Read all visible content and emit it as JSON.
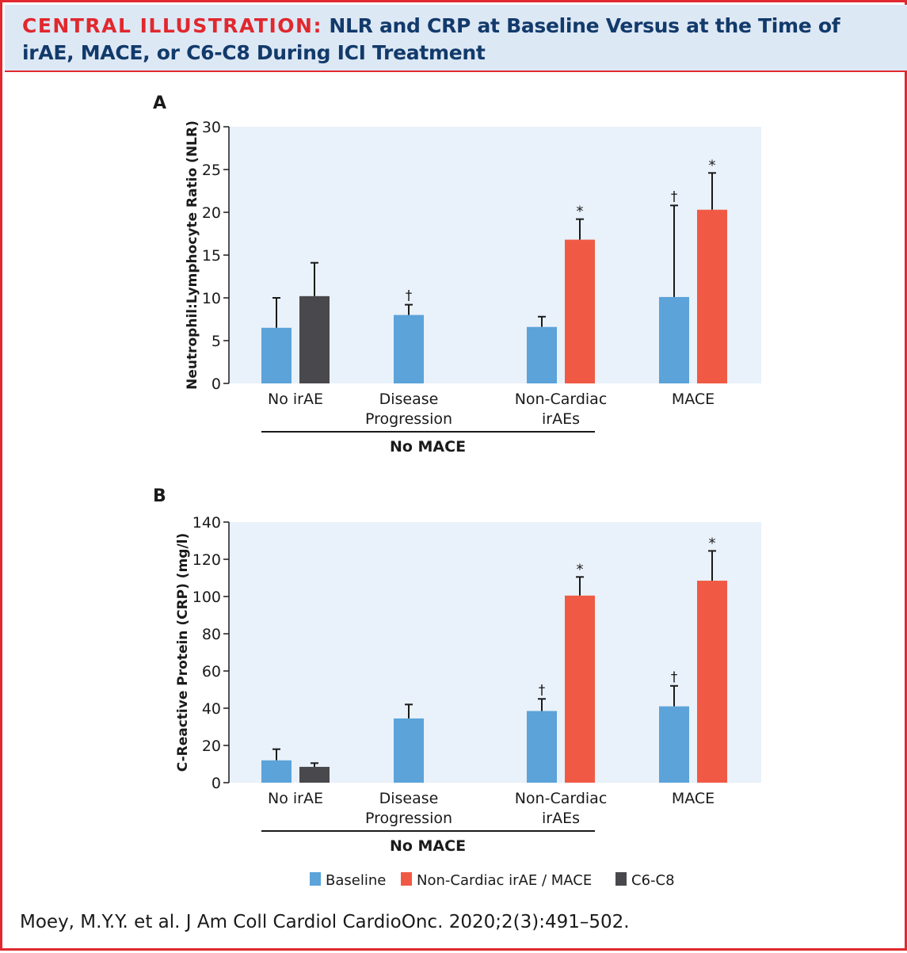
{
  "header": {
    "label": "CENTRAL ILLUSTRATION:",
    "title_line1": " NLR and CRP at Baseline Versus at the Time of",
    "title_line2": "irAE, MACE, or C6-C8 During ICI Treatment"
  },
  "colors": {
    "baseline": "#5ba3d9",
    "event": "#f05a45",
    "c6c8": "#48484d",
    "plot_bg": "#e9f1fa",
    "accent": "#e0282e",
    "title": "#123a6b"
  },
  "legend": [
    {
      "key": "baseline",
      "label": "Baseline"
    },
    {
      "key": "event",
      "label": "Non-Cardiac irAE / MACE"
    },
    {
      "key": "c6c8",
      "label": "C6-C8"
    }
  ],
  "chart_data": [
    {
      "type": "bar",
      "panel": "A",
      "ylabel": "Neutrophil:Lymphocyte Ratio (NLR)",
      "xlabel": "",
      "ylim": [
        0,
        30
      ],
      "yticks": [
        0,
        5,
        10,
        15,
        20,
        25,
        30
      ],
      "categories": [
        {
          "lines": [
            "No irAE"
          ]
        },
        {
          "lines": [
            "Disease",
            "Progression"
          ]
        },
        {
          "lines": [
            "Non-Cardiac",
            "irAEs"
          ]
        },
        {
          "lines": [
            "MACE"
          ]
        }
      ],
      "group_label": "No MACE",
      "bars": [
        {
          "group": 0,
          "slot": 0,
          "series": "baseline",
          "value": 6.5,
          "err": 10.0,
          "mark": ""
        },
        {
          "group": 0,
          "slot": 1,
          "series": "c6c8",
          "value": 10.2,
          "err": 14.1,
          "mark": ""
        },
        {
          "group": 1,
          "slot": 0,
          "series": "baseline",
          "value": 8.0,
          "err": 9.2,
          "mark": "†"
        },
        {
          "group": 2,
          "slot": 0,
          "series": "baseline",
          "value": 6.6,
          "err": 7.8,
          "mark": ""
        },
        {
          "group": 2,
          "slot": 1,
          "series": "event",
          "value": 16.8,
          "err": 19.2,
          "mark": "*"
        },
        {
          "group": 3,
          "slot": 0,
          "series": "baseline",
          "value": 10.1,
          "err": 20.8,
          "mark": "†"
        },
        {
          "group": 3,
          "slot": 1,
          "series": "event",
          "value": 20.3,
          "err": 24.6,
          "mark": "*"
        }
      ]
    },
    {
      "type": "bar",
      "panel": "B",
      "ylabel": "C-Reactive Protein (CRP) (mg/l)",
      "xlabel": "",
      "ylim": [
        0,
        140
      ],
      "yticks": [
        0,
        20,
        40,
        60,
        80,
        100,
        120,
        140
      ],
      "categories": [
        {
          "lines": [
            "No irAE"
          ]
        },
        {
          "lines": [
            "Disease",
            "Progression"
          ]
        },
        {
          "lines": [
            "Non-Cardiac",
            "irAEs"
          ]
        },
        {
          "lines": [
            "MACE"
          ]
        }
      ],
      "group_label": "No MACE",
      "bars": [
        {
          "group": 0,
          "slot": 0,
          "series": "baseline",
          "value": 12,
          "err": 18,
          "mark": ""
        },
        {
          "group": 0,
          "slot": 1,
          "series": "c6c8",
          "value": 8.5,
          "err": 10.5,
          "mark": ""
        },
        {
          "group": 1,
          "slot": 0,
          "series": "baseline",
          "value": 34.5,
          "err": 42,
          "mark": ""
        },
        {
          "group": 2,
          "slot": 0,
          "series": "baseline",
          "value": 38.5,
          "err": 45,
          "mark": "†"
        },
        {
          "group": 2,
          "slot": 1,
          "series": "event",
          "value": 100.5,
          "err": 110.5,
          "mark": "*"
        },
        {
          "group": 3,
          "slot": 0,
          "series": "baseline",
          "value": 41,
          "err": 52,
          "mark": "†"
        },
        {
          "group": 3,
          "slot": 1,
          "series": "event",
          "value": 108.5,
          "err": 124.5,
          "mark": "*"
        }
      ]
    }
  ],
  "citation": "Moey, M.Y.Y. et al. J Am Coll Cardiol CardioOnc. 2020;2(3):491–502."
}
